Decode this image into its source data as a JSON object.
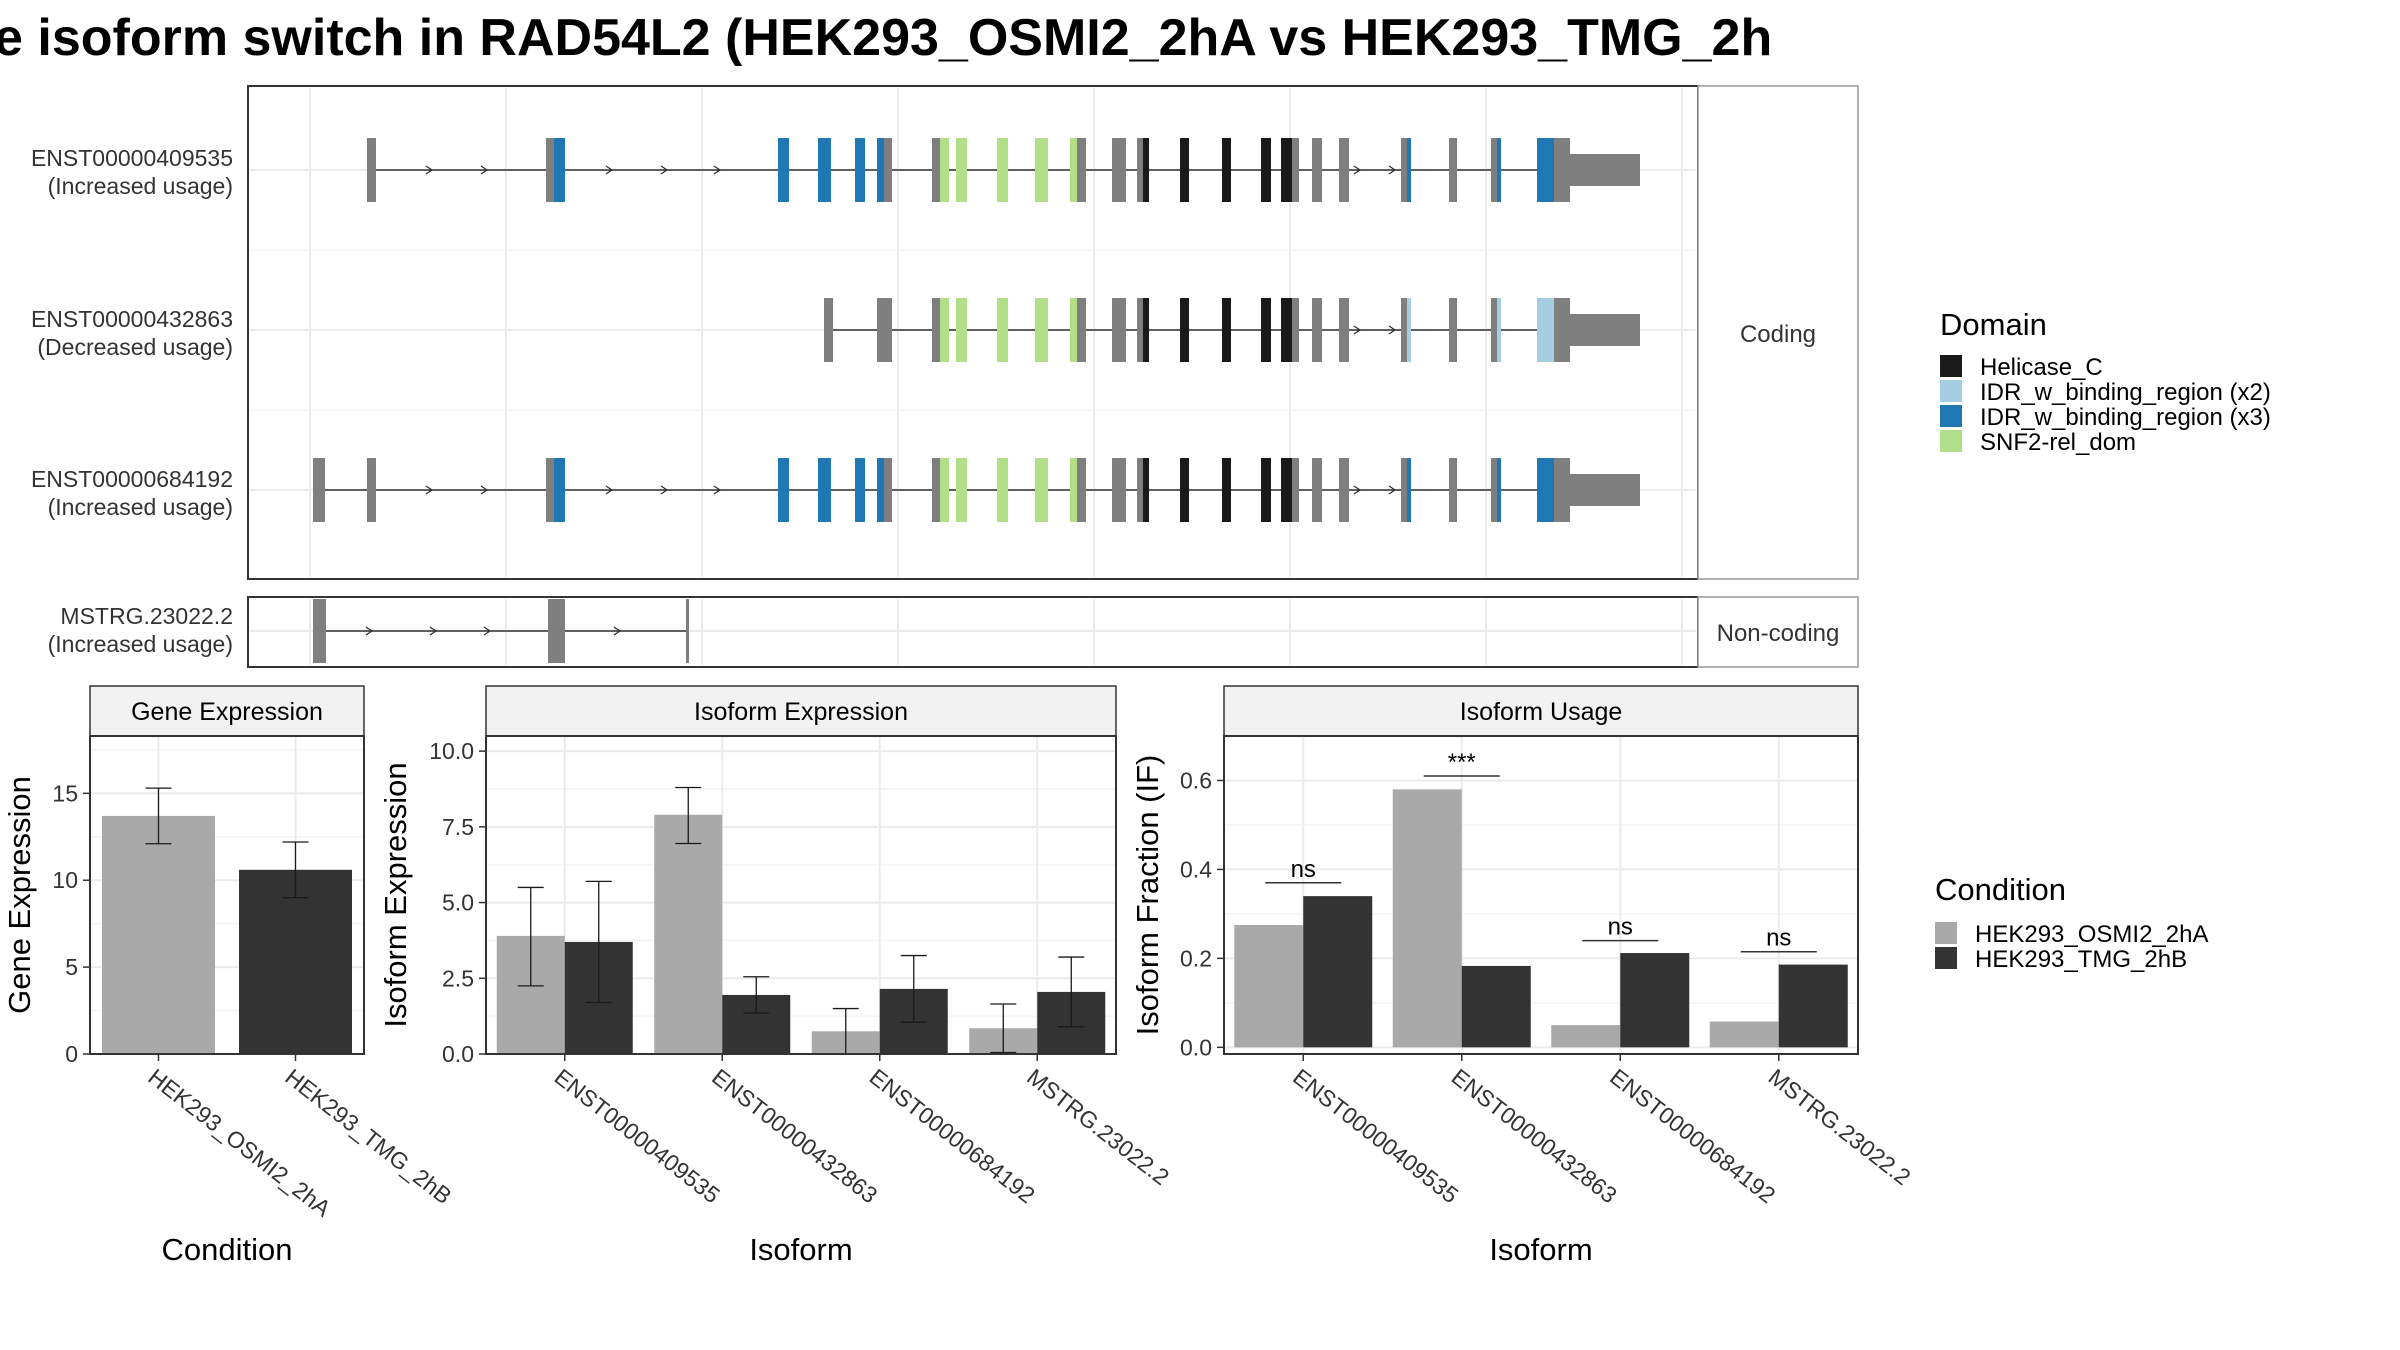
{
  "title": "e isoform switch in RAD54L2 (HEK293_OSMI2_2hA vs HEK293_TMG_2h",
  "colors": {
    "exon": "#7f7f7f",
    "helicase": "#1a1a1a",
    "idr2": "#a6cee3",
    "idr3": "#1f78b4",
    "snf2": "#b2df8a",
    "cond1": "#a9a9a9",
    "cond2": "#333333"
  },
  "structure": {
    "coding_strip": "Coding",
    "noncoding_strip": "Non-coding",
    "transcripts": [
      {
        "id": "ENST00000409535",
        "usage": "(Increased usage)",
        "group": "coding"
      },
      {
        "id": "ENST00000432863",
        "usage": "(Decreased usage)",
        "group": "coding"
      },
      {
        "id": "ENST00000684192",
        "usage": "(Increased usage)",
        "group": "coding"
      },
      {
        "id": "MSTRG.23022.2",
        "usage": "(Increased usage)",
        "group": "noncoding"
      }
    ]
  },
  "domain_legend": {
    "title": "Domain",
    "items": [
      {
        "label": "Helicase_C",
        "color": "#1a1a1a"
      },
      {
        "label": "IDR_w_binding_region (x2)",
        "color": "#a6cee3"
      },
      {
        "label": "IDR_w_binding_region (x3)",
        "color": "#1f78b4"
      },
      {
        "label": "SNF2-rel_dom",
        "color": "#b2df8a"
      }
    ]
  },
  "condition_legend": {
    "title": "Condition",
    "items": [
      {
        "label": "HEK293_OSMI2_2hA",
        "color": "#a9a9a9"
      },
      {
        "label": "HEK293_TMG_2hB",
        "color": "#333333"
      }
    ]
  },
  "chart_data": [
    {
      "type": "bar",
      "title": "Gene Expression",
      "xlabel": "Condition",
      "ylabel": "Gene Expression",
      "categories": [
        "HEK293_OSMI2_2hA",
        "HEK293_TMG_2hB"
      ],
      "values": [
        13.7,
        10.6
      ],
      "errors": [
        [
          12.1,
          15.3
        ],
        [
          9.0,
          12.2
        ]
      ],
      "ylim": [
        0,
        18.3
      ],
      "yticks": [
        0,
        5,
        10,
        15
      ],
      "ytick_labels": [
        "0",
        "5",
        "10",
        "15"
      ]
    },
    {
      "type": "bar",
      "title": "Isoform Expression",
      "xlabel": "Isoform",
      "ylabel": "Isoform Expression",
      "categories": [
        "ENST00000409535",
        "ENST00000432863",
        "ENST00000684192",
        "MSTRG.23022.2"
      ],
      "series": [
        {
          "name": "HEK293_OSMI2_2hA",
          "values": [
            3.9,
            7.9,
            0.75,
            0.85
          ],
          "errors": [
            [
              2.25,
              5.5
            ],
            [
              6.95,
              8.8
            ],
            [
              0.0,
              1.5
            ],
            [
              0.05,
              1.65
            ]
          ]
        },
        {
          "name": "HEK293_TMG_2hB",
          "values": [
            3.7,
            1.95,
            2.15,
            2.05
          ],
          "errors": [
            [
              1.7,
              5.7
            ],
            [
              1.35,
              2.55
            ],
            [
              1.05,
              3.25
            ],
            [
              0.9,
              3.2
            ]
          ]
        }
      ],
      "ylim": [
        0,
        10.5
      ],
      "yticks": [
        0,
        2.5,
        5,
        7.5,
        10
      ],
      "ytick_labels": [
        "0.0",
        "2.5",
        "5.0",
        "7.5",
        "10.0"
      ]
    },
    {
      "type": "bar",
      "title": "Isoform Usage",
      "xlabel": "Isoform",
      "ylabel": "Isoform Fraction (IF)",
      "categories": [
        "ENST00000409535",
        "ENST00000432863",
        "ENST00000684192",
        "MSTRG.23022.2"
      ],
      "series": [
        {
          "name": "HEK293_OSMI2_2hA",
          "values": [
            0.275,
            0.58,
            0.05,
            0.058
          ]
        },
        {
          "name": "HEK293_TMG_2hB",
          "values": [
            0.34,
            0.183,
            0.212,
            0.186
          ]
        }
      ],
      "significance": [
        "ns",
        "***",
        "ns",
        "ns"
      ],
      "sig_y": [
        0.37,
        0.61,
        0.24,
        0.215
      ],
      "ylim": [
        -0.015,
        0.7
      ],
      "yticks": [
        0,
        0.2,
        0.4,
        0.6
      ],
      "ytick_labels": [
        "0.0",
        "0.2",
        "0.4",
        "0.6"
      ]
    }
  ]
}
